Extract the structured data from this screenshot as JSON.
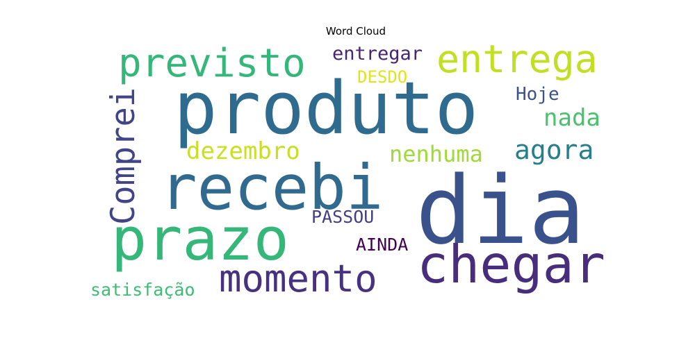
{
  "title": "Word Cloud",
  "words": [
    {
      "text": "produto",
      "color": "#2f6b8e"
    },
    {
      "text": "dia",
      "color": "#3a528b"
    },
    {
      "text": "recebi",
      "color": "#306a8e"
    },
    {
      "text": "prazo",
      "color": "#35b779"
    },
    {
      "text": "chegar",
      "color": "#472d7b"
    },
    {
      "text": "momento",
      "color": "#46327e"
    },
    {
      "text": "entrega",
      "color": "#c2df23"
    },
    {
      "text": "previsto",
      "color": "#35b779"
    },
    {
      "text": "Comprei",
      "color": "#414487"
    },
    {
      "text": "agora",
      "color": "#277f8e"
    },
    {
      "text": "dezembro",
      "color": "#c8e020"
    },
    {
      "text": "nenhuma",
      "color": "#a0da39"
    },
    {
      "text": "nada",
      "color": "#4ac16d"
    },
    {
      "text": "entregar",
      "color": "#482475"
    },
    {
      "text": "satisfação",
      "color": "#3dbc74"
    },
    {
      "text": "Hoje",
      "color": "#3b528b"
    },
    {
      "text": "PASSOU",
      "color": "#433e85"
    },
    {
      "text": "AINDA",
      "color": "#440154"
    },
    {
      "text": "DESDO",
      "color": "#e2e418"
    }
  ]
}
